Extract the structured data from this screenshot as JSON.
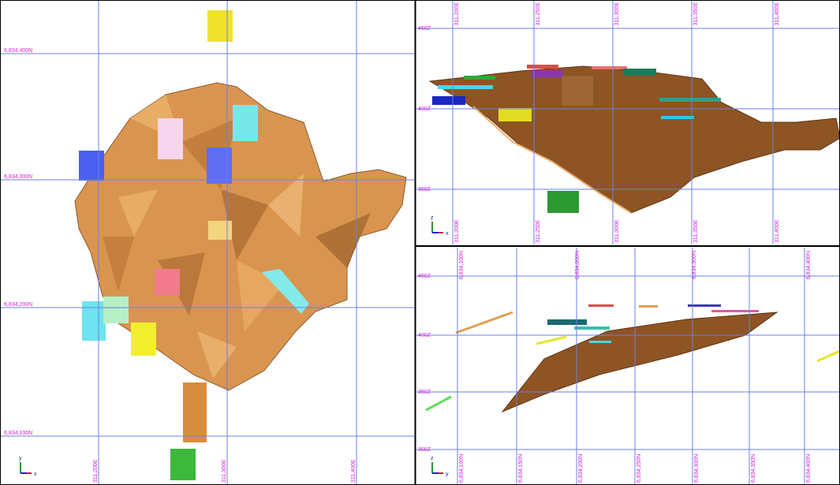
{
  "plan_view": {
    "northing_labels": [
      "6,834,400N",
      "6,834,300N",
      "6,834,200N",
      "6,834,100N"
    ],
    "easting_labels": [
      "311,200E",
      "311,300E",
      "311,400E"
    ],
    "axis_labels": [
      "y",
      "x"
    ]
  },
  "section_east": {
    "top_labels": [
      "311,200E",
      "311,250E",
      "311,300E",
      "311,350E",
      "311,400E"
    ],
    "bottom_labels": [
      "311,200E",
      "311,250E",
      "311,300E",
      "311,350E",
      "311,400E"
    ],
    "elevation_labels": [
      "450Z",
      "400Z",
      "350Z"
    ],
    "axis_labels": [
      "z",
      "x"
    ]
  },
  "section_north": {
    "top_labels": [
      "6,834,100N",
      "6,834,200N",
      "6,834,300N",
      "6,834,400N"
    ],
    "bottom_labels": [
      "6,834,100N",
      "6,834,150N",
      "6,834,200N",
      "6,834,250N",
      "6,834,300N",
      "6,834,350N",
      "6,834,400N"
    ],
    "elevation_labels": [
      "450Z",
      "400Z",
      "350Z",
      "300Z"
    ],
    "axis_labels": [
      "z",
      "y"
    ]
  }
}
